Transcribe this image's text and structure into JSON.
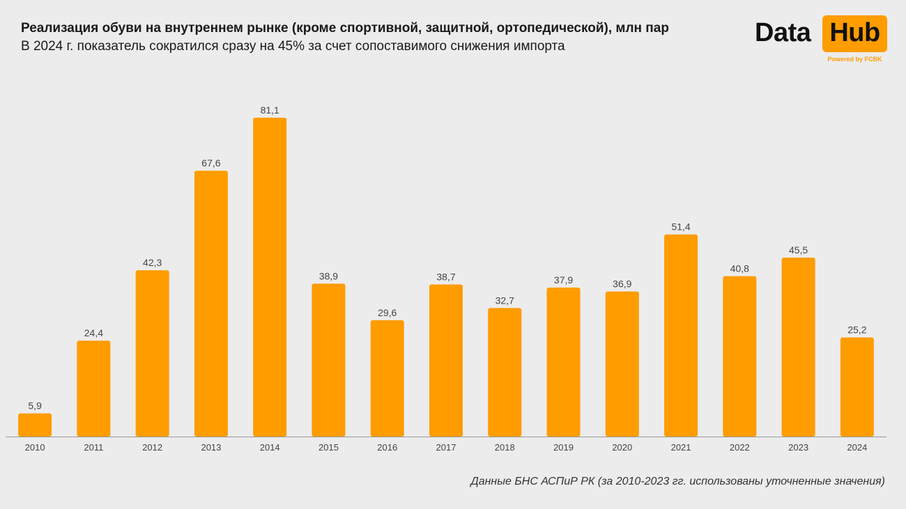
{
  "header": {
    "title": "Реализация обуви на внутреннем рынке (кроме спортивной, защитной, ортопедической), млн пар",
    "subtitle": "В 2024 г. показатель сократился сразу на 45% за счет сопоставимого снижения импорта"
  },
  "logo": {
    "word1": "Data",
    "word2": "Hub",
    "powered": "Powered by FCBK"
  },
  "source": "Данные БНС АСПиР РК (за 2010-2023 гг. использованы уточненные значения)",
  "colors": {
    "bar": "#ff9c00",
    "background": "#ececec",
    "label": "#444444",
    "axis": "#999999"
  },
  "chart_data": {
    "type": "bar",
    "categories": [
      "2010",
      "2011",
      "2012",
      "2013",
      "2014",
      "2015",
      "2016",
      "2017",
      "2018",
      "2019",
      "2020",
      "2021",
      "2022",
      "2023",
      "2024"
    ],
    "values": [
      5.9,
      24.4,
      42.3,
      67.6,
      81.1,
      38.9,
      29.6,
      38.7,
      32.7,
      37.9,
      36.9,
      51.4,
      40.8,
      45.5,
      25.2
    ],
    "value_labels": [
      "5,9",
      "24,4",
      "42,3",
      "67,6",
      "81,1",
      "38,9",
      "29,6",
      "38,7",
      "32,7",
      "37,9",
      "36,9",
      "51,4",
      "40,8",
      "45,5",
      "25,2"
    ],
    "ylim": [
      0,
      81.1
    ],
    "grid": false,
    "legend": "none"
  }
}
